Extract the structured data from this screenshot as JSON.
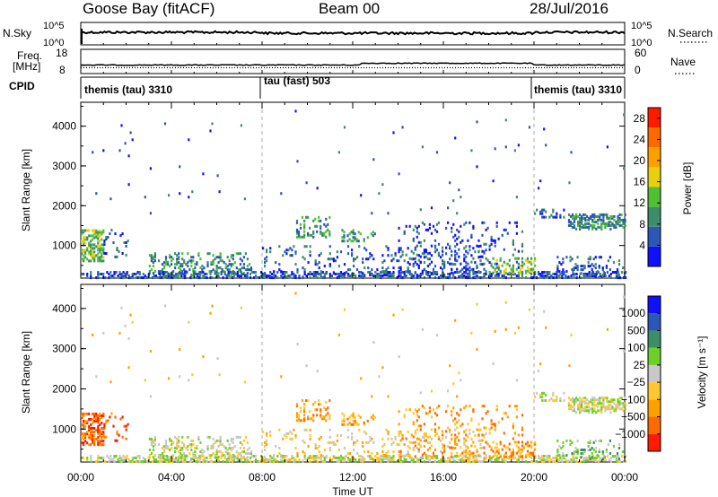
{
  "header": {
    "station": "Goose Bay (fitACF)",
    "beam": "Beam 00",
    "date": "28/Jul/2016"
  },
  "strip_labels": {
    "nsky": "N.Sky",
    "nsky_ticks": [
      "10^5",
      "10^0"
    ],
    "nsearch": "N.Search",
    "nsearch_ticks": [
      "10^5",
      "10^0"
    ],
    "freq_line1": "Freq.",
    "freq_line2": "[MHz]",
    "freq_ticks": [
      "18",
      "8"
    ],
    "nave": "Nave",
    "nave_ticks": [
      "60",
      "0"
    ],
    "cpid": "CPID"
  },
  "cpid_segments": [
    "themis (tau) 3310",
    "tau (fast) 503",
    "themis (tau) 3310"
  ],
  "colors": {
    "power": [
      "#1010ff",
      "#2a57b8",
      "#3e8d6a",
      "#50c032",
      "#e6d010",
      "#ffa000",
      "#ff6a00",
      "#ff1a00"
    ],
    "velocity": [
      "#ff1a00",
      "#ff6a00",
      "#ffa000",
      "#ffc830",
      "#c8c8c8",
      "#6ecf2a",
      "#3e8d6a",
      "#2a57b8",
      "#1010ff"
    ]
  },
  "chart_data": [
    {
      "type": "heatmap",
      "title": "Power",
      "ylabel": "Slant Range [km]",
      "xlabel": "",
      "ylim": [
        180,
        4600
      ],
      "yticks": [
        "1000",
        "2000",
        "3000",
        "4000"
      ],
      "colorbar_label": "Power [dB]",
      "colorbar_ticks": [
        "4",
        "8",
        "12",
        "16",
        "20",
        "24",
        "28"
      ],
      "colorbar_range": [
        0,
        30
      ]
    },
    {
      "type": "heatmap",
      "title": "Velocity",
      "ylabel": "Slant Range [km]",
      "xlabel": "Time UT",
      "xticks": [
        "00:00",
        "04:00",
        "08:00",
        "12:00",
        "16:00",
        "20:00",
        "00:00"
      ],
      "ylim": [
        180,
        4600
      ],
      "yticks": [
        "1000",
        "2000",
        "3000",
        "4000"
      ],
      "colorbar_label": "Velocity [m s⁻¹]",
      "colorbar_ticks": [
        "1000",
        "500",
        "100",
        "25",
        "−25",
        "−100",
        "−500",
        "−1000"
      ]
    }
  ]
}
